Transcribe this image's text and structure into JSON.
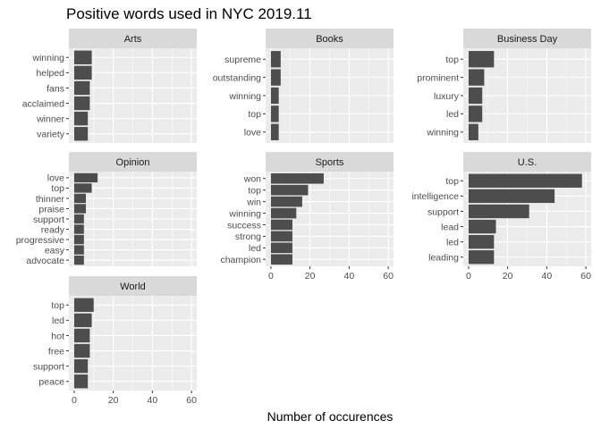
{
  "chart_data": {
    "type": "bar",
    "orientation": "horizontal",
    "layout": "faceted",
    "title": "Positive words used in NYC 2019.11",
    "xlabel": "Number of occurences",
    "ylabel": "",
    "xlim": [
      0,
      60
    ],
    "x_ticks": [
      0,
      20,
      40,
      60
    ],
    "grid": true,
    "colors": {
      "bar": "#4d4d4d",
      "panel_bg": "#ebebeb",
      "strip_bg": "#d9d9d9",
      "grid": "#ffffff"
    },
    "facets": [
      {
        "name": "Arts",
        "categories": [
          "winning",
          "helped",
          "fans",
          "acclaimed",
          "winner",
          "variety"
        ],
        "values": [
          9,
          9,
          8,
          8,
          7,
          7
        ]
      },
      {
        "name": "Books",
        "categories": [
          "supreme",
          "outstanding",
          "winning",
          "top",
          "love"
        ],
        "values": [
          5,
          5,
          4,
          4,
          4
        ]
      },
      {
        "name": "Business Day",
        "categories": [
          "top",
          "prominent",
          "luxury",
          "led",
          "winning"
        ],
        "values": [
          13,
          8,
          7,
          7,
          5
        ]
      },
      {
        "name": "Opinion",
        "categories": [
          "love",
          "top",
          "thinner",
          "praise",
          "support",
          "ready",
          "progressive",
          "easy",
          "advocate"
        ],
        "values": [
          12,
          9,
          6,
          6,
          5,
          5,
          5,
          5,
          5
        ]
      },
      {
        "name": "Sports",
        "categories": [
          "won",
          "top",
          "win",
          "winning",
          "success",
          "strong",
          "led",
          "champion"
        ],
        "values": [
          27,
          19,
          16,
          13,
          11,
          11,
          11,
          11
        ]
      },
      {
        "name": "U.S.",
        "categories": [
          "top",
          "intelligence",
          "support",
          "lead",
          "led",
          "leading"
        ],
        "values": [
          58,
          44,
          31,
          14,
          13,
          13
        ]
      },
      {
        "name": "World",
        "categories": [
          "top",
          "led",
          "hot",
          "free",
          "support",
          "peace"
        ],
        "values": [
          10,
          9,
          8,
          8,
          7,
          7
        ]
      }
    ]
  }
}
